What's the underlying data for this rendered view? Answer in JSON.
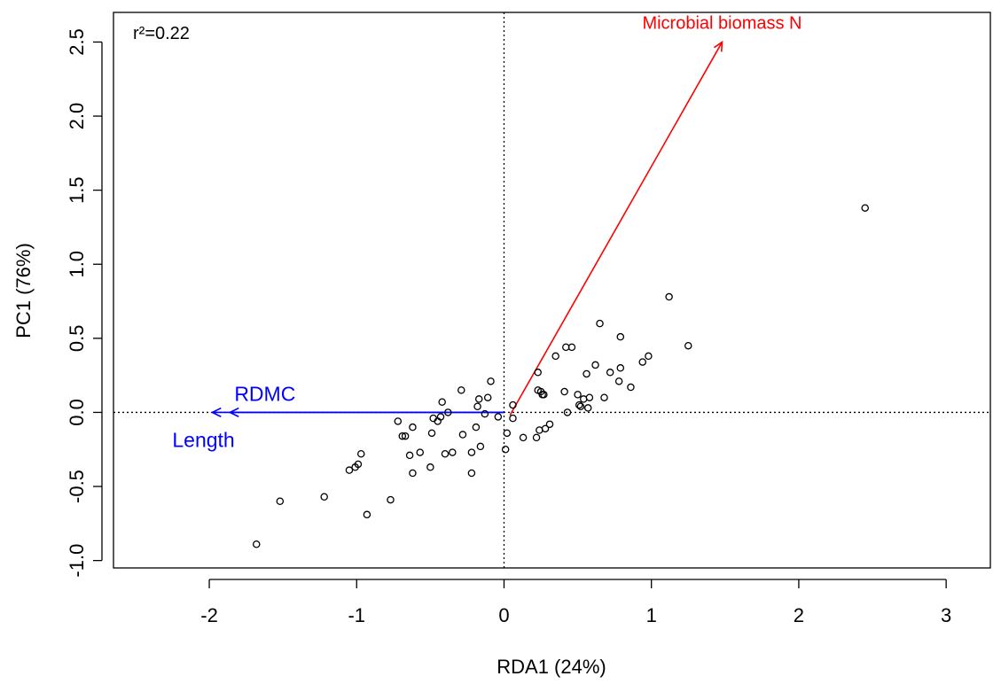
{
  "chart_data": {
    "type": "scatter",
    "title": "",
    "xlabel": "RDA1 (24%)",
    "ylabel": "PC1 (76%)",
    "annotation": "r²=0.22",
    "xlim": [
      -2.65,
      3.3
    ],
    "ylim": [
      -1.05,
      2.7
    ],
    "x_ticks": [
      -2,
      -1,
      0,
      1,
      2,
      3
    ],
    "x_tick_labels": [
      "-2",
      "-1",
      "0",
      "1",
      "2",
      "3"
    ],
    "y_ticks": [
      -1.0,
      -0.5,
      0.0,
      0.5,
      1.0,
      1.5,
      2.0,
      2.5
    ],
    "y_tick_labels": [
      "-1.0",
      "-0.5",
      "0.0",
      "0.5",
      "1.0",
      "1.5",
      "2.0",
      "2.5"
    ],
    "grid": false,
    "reference_lines": {
      "x": 0,
      "y": 0,
      "style": "dotted"
    },
    "point_color": "#000000",
    "points": [
      {
        "x": -1.68,
        "y": -0.89
      },
      {
        "x": -1.52,
        "y": -0.6
      },
      {
        "x": -1.22,
        "y": -0.57
      },
      {
        "x": -1.05,
        "y": -0.39
      },
      {
        "x": -1.01,
        "y": -0.37
      },
      {
        "x": -0.99,
        "y": -0.35
      },
      {
        "x": -0.97,
        "y": -0.28
      },
      {
        "x": -0.93,
        "y": -0.69
      },
      {
        "x": -0.77,
        "y": -0.59
      },
      {
        "x": -0.72,
        "y": -0.06
      },
      {
        "x": -0.69,
        "y": -0.16
      },
      {
        "x": -0.67,
        "y": -0.16
      },
      {
        "x": -0.64,
        "y": -0.29
      },
      {
        "x": -0.62,
        "y": -0.1
      },
      {
        "x": -0.62,
        "y": -0.41
      },
      {
        "x": -0.57,
        "y": -0.27
      },
      {
        "x": -0.5,
        "y": -0.37
      },
      {
        "x": -0.49,
        "y": -0.14
      },
      {
        "x": -0.48,
        "y": -0.04
      },
      {
        "x": -0.45,
        "y": -0.06
      },
      {
        "x": -0.43,
        "y": -0.03
      },
      {
        "x": -0.42,
        "y": 0.07
      },
      {
        "x": -0.4,
        "y": -0.28
      },
      {
        "x": -0.38,
        "y": 0.0
      },
      {
        "x": -0.35,
        "y": -0.27
      },
      {
        "x": -0.29,
        "y": 0.15
      },
      {
        "x": -0.28,
        "y": -0.15
      },
      {
        "x": -0.22,
        "y": -0.27
      },
      {
        "x": -0.22,
        "y": -0.41
      },
      {
        "x": -0.19,
        "y": -0.1
      },
      {
        "x": -0.18,
        "y": 0.04
      },
      {
        "x": -0.17,
        "y": 0.09
      },
      {
        "x": -0.16,
        "y": -0.23
      },
      {
        "x": -0.13,
        "y": -0.01
      },
      {
        "x": -0.11,
        "y": 0.1
      },
      {
        "x": -0.09,
        "y": 0.21
      },
      {
        "x": -0.04,
        "y": -0.03
      },
      {
        "x": 0.01,
        "y": -0.25
      },
      {
        "x": 0.02,
        "y": -0.14
      },
      {
        "x": 0.06,
        "y": -0.04
      },
      {
        "x": 0.06,
        "y": 0.05
      },
      {
        "x": 0.13,
        "y": -0.17
      },
      {
        "x": 0.22,
        "y": -0.17
      },
      {
        "x": 0.23,
        "y": 0.27
      },
      {
        "x": 0.23,
        "y": 0.15
      },
      {
        "x": 0.24,
        "y": -0.12
      },
      {
        "x": 0.25,
        "y": 0.14
      },
      {
        "x": 0.26,
        "y": 0.12
      },
      {
        "x": 0.27,
        "y": 0.12
      },
      {
        "x": 0.28,
        "y": -0.11
      },
      {
        "x": 0.31,
        "y": -0.08
      },
      {
        "x": 0.35,
        "y": 0.38
      },
      {
        "x": 0.41,
        "y": 0.14
      },
      {
        "x": 0.42,
        "y": 0.44
      },
      {
        "x": 0.43,
        "y": 0.0
      },
      {
        "x": 0.46,
        "y": 0.44
      },
      {
        "x": 0.5,
        "y": 0.12
      },
      {
        "x": 0.51,
        "y": 0.05
      },
      {
        "x": 0.52,
        "y": 0.04
      },
      {
        "x": 0.54,
        "y": 0.09
      },
      {
        "x": 0.56,
        "y": 0.26
      },
      {
        "x": 0.57,
        "y": 0.03
      },
      {
        "x": 0.58,
        "y": 0.1
      },
      {
        "x": 0.62,
        "y": 0.32
      },
      {
        "x": 0.65,
        "y": 0.6
      },
      {
        "x": 0.68,
        "y": 0.1
      },
      {
        "x": 0.72,
        "y": 0.27
      },
      {
        "x": 0.78,
        "y": 0.21
      },
      {
        "x": 0.79,
        "y": 0.3
      },
      {
        "x": 0.79,
        "y": 0.51
      },
      {
        "x": 0.86,
        "y": 0.17
      },
      {
        "x": 0.94,
        "y": 0.34
      },
      {
        "x": 0.98,
        "y": 0.38
      },
      {
        "x": 1.12,
        "y": 0.78
      },
      {
        "x": 1.25,
        "y": 0.45
      },
      {
        "x": 2.45,
        "y": 1.38
      }
    ],
    "arrows": [
      {
        "label": "Microbial biomass N",
        "color": "#ff0000",
        "from": [
          0.04,
          -0.02
        ],
        "to": [
          1.48,
          2.5
        ]
      },
      {
        "label": "RDMC",
        "color": "#0000ff",
        "from": [
          0.0,
          0.0
        ],
        "to": [
          -1.86,
          0.0
        ]
      },
      {
        "label": "Length",
        "color": "#0000ff",
        "from": [
          0.0,
          0.0
        ],
        "to": [
          -1.98,
          0.0
        ]
      }
    ]
  }
}
